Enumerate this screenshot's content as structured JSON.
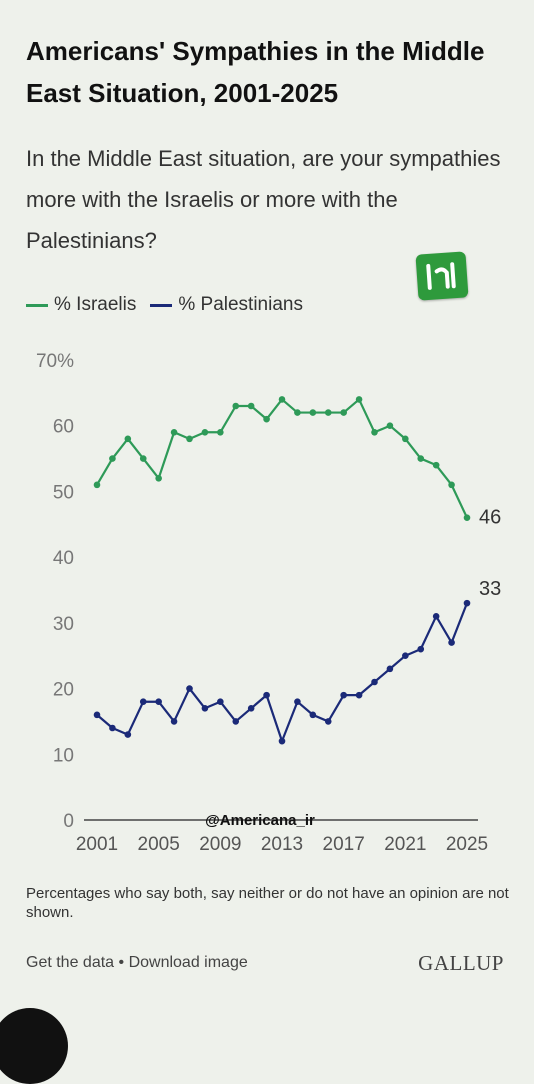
{
  "header": {
    "title": "Americans' Sympathies in the Middle East Situation, 2001-2025",
    "subtitle": "In the Middle East situation, are your sympathies more with the Israelis or more with the Palestinians?"
  },
  "watermark": "@Americana_ir",
  "footnote": "Percentages who say both, say neither or do not have an opinion are not shown.",
  "links": {
    "get_data": "Get the data",
    "separator": " • ",
    "download": "Download image"
  },
  "brand": "GALLUP",
  "colors": {
    "israelis": "#2e9a58",
    "palestinians": "#1b2a78",
    "logo": "#2e9a3c"
  },
  "chart_data": {
    "type": "line",
    "title": "Americans' Sympathies in the Middle East Situation, 2001-2025",
    "x": [
      2001,
      2002,
      2003,
      2004,
      2005,
      2006,
      2007,
      2008,
      2009,
      2010,
      2011,
      2012,
      2013,
      2014,
      2015,
      2016,
      2017,
      2018,
      2019,
      2020,
      2021,
      2022,
      2023,
      2024,
      2025
    ],
    "xticks": [
      "2001",
      "2005",
      "2009",
      "2013",
      "2017",
      "2021",
      "2025"
    ],
    "yticks": [
      "70%",
      "60",
      "50",
      "40",
      "30",
      "20",
      "10",
      "0"
    ],
    "ylim": [
      0,
      70
    ],
    "series": [
      {
        "name": "% Israelis",
        "values": [
          51,
          55,
          58,
          55,
          52,
          59,
          58,
          59,
          59,
          63,
          63,
          61,
          64,
          62,
          62,
          62,
          62,
          64,
          59,
          60,
          58,
          55,
          54,
          51,
          46
        ],
        "end_label": "46"
      },
      {
        "name": "% Palestinians",
        "values": [
          16,
          14,
          13,
          18,
          18,
          15,
          20,
          17,
          18,
          15,
          17,
          19,
          12,
          18,
          16,
          15,
          19,
          19,
          21,
          23,
          25,
          26,
          31,
          27,
          33
        ],
        "end_label": "33"
      }
    ]
  }
}
